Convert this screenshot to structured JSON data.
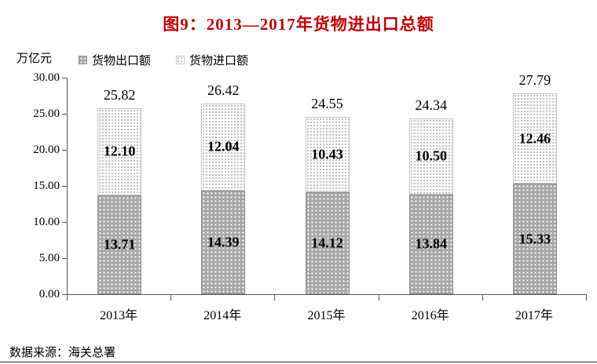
{
  "figure": {
    "title": "图9：2013—2017年货物进出口总额",
    "y_axis_unit": "万亿元",
    "source_note": "数据来源：海关总署"
  },
  "colors": {
    "title_text": "#c00000",
    "export_fill": "#a8a8a8",
    "export_dot": "#ffffff",
    "import_fill": "#ffffff",
    "import_dot": "#ababab",
    "axis_line": "#595959",
    "value_text": "#000000"
  },
  "legend": {
    "items": [
      {
        "label": "货物出口额",
        "series": "export"
      },
      {
        "label": "货物进口额",
        "series": "import"
      }
    ]
  },
  "chart_data": {
    "type": "bar",
    "stacked": true,
    "title": "图9：2013—2017年货物进出口总额",
    "xlabel": "",
    "ylabel": "万亿元",
    "ylim": [
      0,
      30
    ],
    "grid": false,
    "legend_position": "top",
    "categories": [
      "2013年",
      "2014年",
      "2015年",
      "2016年",
      "2017年"
    ],
    "series": [
      {
        "name": "货物出口额",
        "values": [
          13.71,
          14.39,
          14.12,
          13.84,
          15.33
        ],
        "labels": [
          "13.71",
          "14.39",
          "14.12",
          "13.84",
          "15.33"
        ]
      },
      {
        "name": "货物进口额",
        "values": [
          12.1,
          12.04,
          10.43,
          10.5,
          12.46
        ],
        "labels": [
          "12.10",
          "12.04",
          "10.43",
          "10.50",
          "12.46"
        ]
      }
    ],
    "totals": [
      25.82,
      26.42,
      24.55,
      24.34,
      27.79
    ],
    "total_labels": [
      "25.82",
      "26.42",
      "24.55",
      "24.34",
      "27.79"
    ],
    "y_tick_values": [
      30,
      25,
      20,
      15,
      10,
      5,
      0
    ],
    "y_tick_labels": [
      "30.00",
      "25.00",
      "20.00",
      "15.00",
      "10.00",
      "5.00",
      "0.00"
    ]
  }
}
